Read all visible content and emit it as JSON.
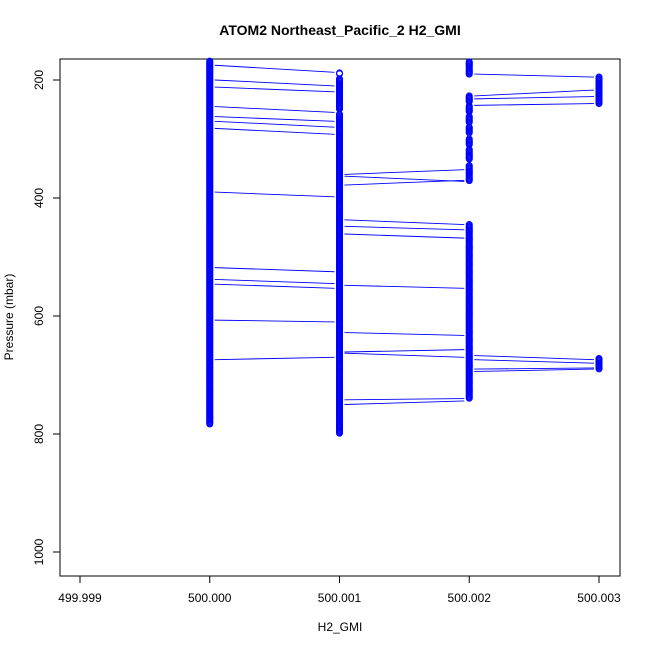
{
  "chart_data": {
    "type": "scatter",
    "title": "ATOM2 Northeast_Pacific_2 H2_GMI",
    "xlabel": "H2_GMI",
    "ylabel": "Pressure (mbar)",
    "y_reversed": true,
    "xlim": [
      499.999,
      500.003
    ],
    "ylim": [
      1040,
      165
    ],
    "x_ticks": [
      "499.999",
      "500.000",
      "500.001",
      "500.002",
      "500.003"
    ],
    "x_tick_values": [
      499.999,
      500.0,
      500.001,
      500.002,
      500.003
    ],
    "y_ticks": [
      "200",
      "400",
      "600",
      "800",
      "1000"
    ],
    "y_tick_values": [
      200,
      400,
      600,
      800,
      1000
    ],
    "color": "#0000ff",
    "point_groups": [
      {
        "x": 500.0,
        "p_ranges": [
          [
            165,
            783
          ]
        ],
        "step": 1.5
      },
      {
        "x": 500.001,
        "p_ranges": [
          [
            188,
            190
          ],
          [
            198,
            250
          ],
          [
            258,
            800
          ]
        ],
        "step": 1.6
      },
      {
        "x": 500.002,
        "p_ranges": [
          [
            166,
            190
          ],
          [
            227,
            238
          ],
          [
            244,
            255
          ],
          [
            262,
            272
          ],
          [
            280,
            291
          ],
          [
            300,
            310
          ],
          [
            318,
            335
          ],
          [
            345,
            372
          ],
          [
            445,
            740
          ]
        ],
        "step": 1.6
      },
      {
        "x": 500.003,
        "p_ranges": [
          [
            195,
            240
          ],
          [
            672,
            690
          ]
        ],
        "step": 1.6
      }
    ],
    "segments": [
      [
        500.0,
        175,
        500.001,
        187
      ],
      [
        500.0,
        200,
        500.001,
        210
      ],
      [
        500.0,
        212,
        500.001,
        220
      ],
      [
        500.0,
        245,
        500.001,
        255
      ],
      [
        500.0,
        262,
        500.001,
        270
      ],
      [
        500.0,
        270,
        500.001,
        280
      ],
      [
        500.0,
        282,
        500.001,
        292
      ],
      [
        500.0,
        390,
        500.001,
        398
      ],
      [
        500.0,
        518,
        500.001,
        525
      ],
      [
        500.0,
        538,
        500.001,
        545
      ],
      [
        500.0,
        546,
        500.001,
        553
      ],
      [
        500.0,
        607,
        500.001,
        610
      ],
      [
        500.0,
        674,
        500.001,
        670
      ],
      [
        500.001,
        360,
        500.002,
        352
      ],
      [
        500.001,
        363,
        500.002,
        372
      ],
      [
        500.001,
        378,
        500.002,
        370
      ],
      [
        500.001,
        437,
        500.002,
        445
      ],
      [
        500.001,
        448,
        500.002,
        454
      ],
      [
        500.001,
        461,
        500.002,
        468
      ],
      [
        500.001,
        548,
        500.002,
        553
      ],
      [
        500.001,
        628,
        500.002,
        633
      ],
      [
        500.001,
        661,
        500.002,
        657
      ],
      [
        500.001,
        663,
        500.002,
        670
      ],
      [
        500.001,
        742,
        500.002,
        740
      ],
      [
        500.001,
        750,
        500.002,
        744
      ],
      [
        500.002,
        190,
        500.003,
        195
      ],
      [
        500.002,
        227,
        500.003,
        217
      ],
      [
        500.002,
        232,
        500.003,
        228
      ],
      [
        500.002,
        243,
        500.003,
        240
      ],
      [
        500.002,
        667,
        500.003,
        674
      ],
      [
        500.002,
        674,
        500.003,
        680
      ],
      [
        500.002,
        690,
        500.003,
        688
      ],
      [
        500.002,
        694,
        500.003,
        690
      ]
    ]
  }
}
